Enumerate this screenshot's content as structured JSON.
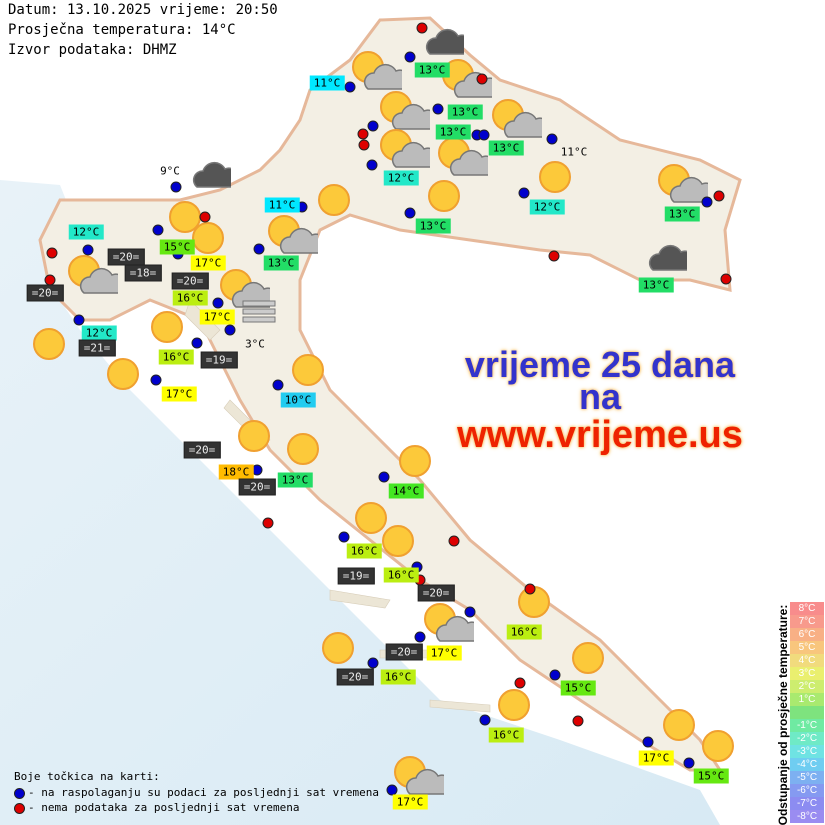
{
  "header": {
    "date_line": "Datum: 13.10.2025 vrijeme: 20:50",
    "avg_temp_line": "Prosječna temperatura: 14°C",
    "source_line": "Izvor podataka: DHMZ"
  },
  "promo": {
    "line1": "vrijeme 25 dana",
    "line2": "na",
    "line3": "www.vrijeme.us",
    "color_line1": "#3333cc",
    "color_line3": "#ee2200"
  },
  "temperature_labels": [
    {
      "text": "11°C",
      "color": "#00e8ff"
    },
    {
      "text": "13°C",
      "color": "#22dd66"
    },
    {
      "text": "13°C",
      "color": "#22dd66"
    },
    {
      "text": "13°C",
      "color": "#22dd66"
    },
    {
      "text": "13°C",
      "color": "#22dd66"
    },
    {
      "text": "12°C",
      "color": "#22e8c8"
    },
    {
      "text": "11°C",
      "color": "none"
    },
    {
      "text": "12°C",
      "color": "#22e8c8"
    },
    {
      "text": "13°C",
      "color": "#22dd66"
    },
    {
      "text": "13°C",
      "color": "#22dd66"
    },
    {
      "text": "11°C",
      "color": "#00e8ff"
    },
    {
      "text": "12°C",
      "color": "#22e8c8"
    },
    {
      "text": "15°C",
      "color": "#66e811"
    },
    {
      "text": "13°C",
      "color": "#22dd66"
    },
    {
      "text": "=20=",
      "color": "sea"
    },
    {
      "text": "17°C",
      "color": "#ffff00"
    },
    {
      "text": "=18=",
      "color": "sea"
    },
    {
      "text": "16°C",
      "color": "#bbee11"
    },
    {
      "text": "=20=",
      "color": "sea"
    },
    {
      "text": "=20=",
      "color": "sea"
    },
    {
      "text": "17°C",
      "color": "#ffff00"
    },
    {
      "text": "3°C",
      "color": "none"
    },
    {
      "text": "12°C",
      "color": "#22e8c8"
    },
    {
      "text": "=21=",
      "color": "sea"
    },
    {
      "text": "16°C",
      "color": "#bbee11"
    },
    {
      "text": "=19=",
      "color": "sea"
    },
    {
      "text": "17°C",
      "color": "#ffff00"
    },
    {
      "text": "13°C",
      "color": "#22dd66"
    },
    {
      "text": "10°C",
      "color": "#22ccf0"
    },
    {
      "text": "=20=",
      "color": "sea"
    },
    {
      "text": "18°C",
      "color": "#ffbb00"
    },
    {
      "text": "13°C",
      "color": "#22dd66"
    },
    {
      "text": "=20=",
      "color": "sea"
    },
    {
      "text": "14°C",
      "color": "#44e622"
    },
    {
      "text": "16°C",
      "color": "#bbee11"
    },
    {
      "text": "=19=",
      "color": "sea"
    },
    {
      "text": "16°C",
      "color": "#bbee11"
    },
    {
      "text": "=20=",
      "color": "sea"
    },
    {
      "text": "16°C",
      "color": "#bbee11"
    },
    {
      "text": "=20=",
      "color": "sea"
    },
    {
      "text": "17°C",
      "color": "#ffff00"
    },
    {
      "text": "=20=",
      "color": "sea"
    },
    {
      "text": "16°C",
      "color": "#bbee11"
    },
    {
      "text": "15°C",
      "color": "#66e811"
    },
    {
      "text": "16°C",
      "color": "#bbee11"
    },
    {
      "text": "17°C",
      "color": "#ffff00"
    },
    {
      "text": "15°C",
      "color": "#66e811"
    },
    {
      "text": "17°C",
      "color": "#ffff00"
    },
    {
      "text": "9°C",
      "color": "none"
    }
  ],
  "weather_icons": [
    "cloud",
    "partly-cloudy",
    "partly-cloudy",
    "partly-cloudy",
    "partly-cloudy",
    "partly-cloudy",
    "partly-cloudy",
    "sun",
    "sun",
    "sun",
    "partly-cloudy",
    "cloud",
    "sun",
    "sun",
    "partly-cloudy",
    "partly-cloudy",
    "partly-cloudy",
    "fog",
    "sun",
    "sun",
    "sun",
    "sun",
    "sun",
    "sun",
    "sun",
    "sun",
    "sun",
    "sun",
    "partly-cloudy",
    "sun",
    "sun",
    "sun",
    "sun",
    "sun",
    "partly-cloudy",
    "cloud"
  ],
  "legend": {
    "title": "Boje točkica na karti:",
    "items": [
      {
        "label": "- na raspolaganju su podaci za posljednji sat vremena",
        "color": "#0000cc"
      },
      {
        "label": "- nema podataka za posljednji sat vremena",
        "color": "#dd0000"
      }
    ]
  },
  "scale": {
    "title": "Odstupanje od prosječne temperature:",
    "steps": [
      {
        "label": "8°C",
        "color": "#f88080"
      },
      {
        "label": "7°C",
        "color": "#f89080"
      },
      {
        "label": "6°C",
        "color": "#f8a878"
      },
      {
        "label": "5°C",
        "color": "#f8c070"
      },
      {
        "label": "4°C",
        "color": "#f0d870"
      },
      {
        "label": "3°C",
        "color": "#e8ee60"
      },
      {
        "label": "2°C",
        "color": "#c8ec60"
      },
      {
        "label": "1°C",
        "color": "#a0e860"
      },
      {
        "label": "",
        "color": "#70e070"
      },
      {
        "label": "-1°C",
        "color": "#60e898"
      },
      {
        "label": "-2°C",
        "color": "#60e8c0"
      },
      {
        "label": "-3°C",
        "color": "#60e0e0"
      },
      {
        "label": "-4°C",
        "color": "#60c8f0"
      },
      {
        "label": "-5°C",
        "color": "#70a8f0"
      },
      {
        "label": "-6°C",
        "color": "#7890f0"
      },
      {
        "label": "-7°C",
        "color": "#8080f0"
      },
      {
        "label": "-8°C",
        "color": "#9080f0"
      }
    ]
  }
}
